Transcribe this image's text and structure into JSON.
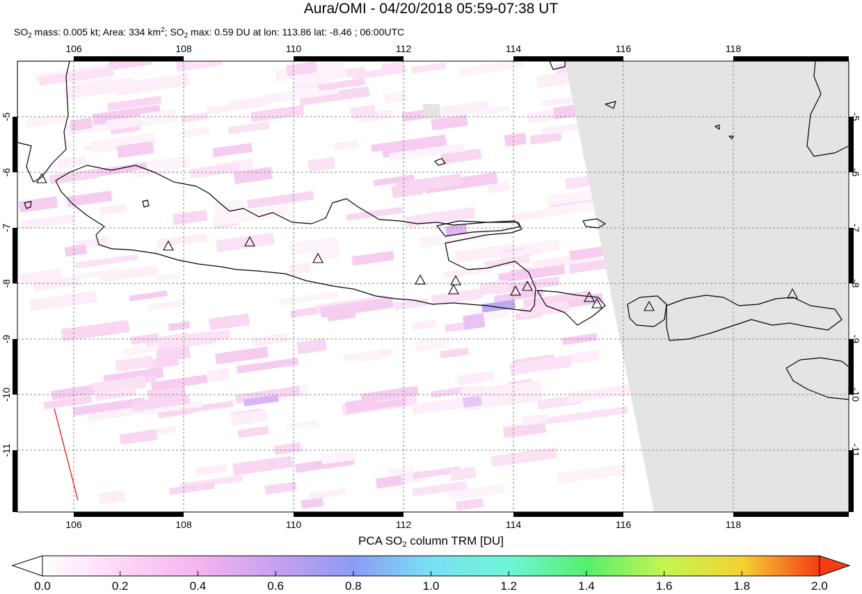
{
  "title": "Aura/OMI - 04/20/2018 05:59-07:38 UT",
  "subtitle": {
    "p1": "SO",
    "p1_sub": "2",
    "p2": " mass: 0.005 kt; Area: 334 km",
    "p2_sup": "2",
    "p3": "; SO",
    "p3_sub": "2",
    "p4": " max: 0.59 DU at lon: 113.86 lat: -8.46 ; 06:00UTC"
  },
  "map": {
    "lon_range": [
      105,
      120
    ],
    "lat_range": [
      -12,
      -4
    ],
    "lon_ticks": [
      "106",
      "108",
      "110",
      "112",
      "114",
      "116",
      "118"
    ],
    "lat_ticks": [
      "-5",
      "-6",
      "-7",
      "-8",
      "-9",
      "-10",
      "-11"
    ],
    "no_data_color": "#e4e4e4",
    "coastline_color": "#000000",
    "grid_color": "#888888",
    "volcano_marker": "triangle-icon"
  },
  "colorbar": {
    "label_pre": "PCA SO",
    "label_sub": "2",
    "label_post": " column TRM [DU]",
    "ticks": [
      "0.0",
      "0.2",
      "0.4",
      "0.6",
      "0.8",
      "1.0",
      "1.2",
      "1.4",
      "1.6",
      "1.8",
      "2.0"
    ],
    "range": [
      0,
      2
    ],
    "colors": [
      "#ffffff",
      "#ffc8f5",
      "#c89bf5",
      "#8c9bf5",
      "#7dd7f5",
      "#73f5e1",
      "#5af58c",
      "#aaf55a",
      "#f5f532",
      "#f5aa1e",
      "#f54614",
      "#e60000"
    ]
  }
}
